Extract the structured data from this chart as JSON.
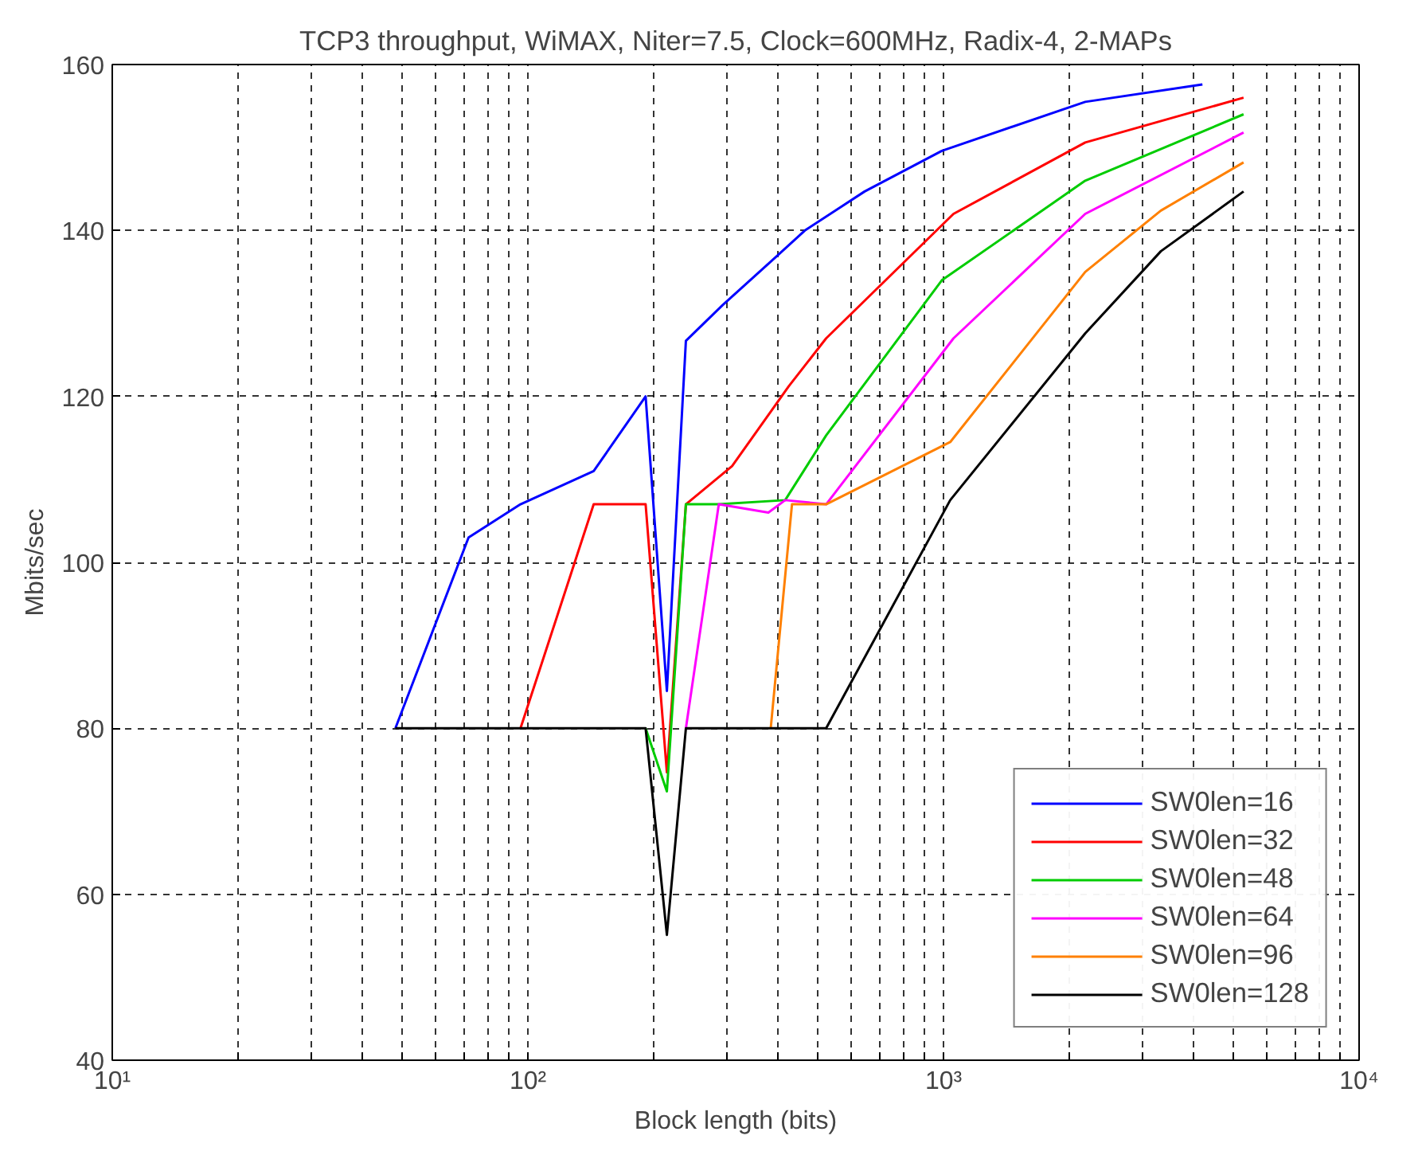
{
  "chart_data": {
    "type": "line",
    "title": "TCP3 throughput, WiMAX, Niter=7.5, Clock=600MHz, Radix-4, 2-MAPs",
    "xlabel": "Block length (bits)",
    "ylabel": "Mbits/sec",
    "log": "x",
    "grid": true,
    "legend": "bottom right",
    "line_style": "solid",
    "marker": "none",
    "xlim": [
      10,
      10000
    ],
    "ylim": [
      40,
      160
    ],
    "xticks": [
      {
        "value": 10,
        "label": "10¹"
      },
      {
        "value": 20,
        "label": null
      },
      {
        "value": 30,
        "label": null
      },
      {
        "value": 40,
        "label": null
      },
      {
        "value": 50,
        "label": null
      },
      {
        "value": 60,
        "label": null
      },
      {
        "value": 70,
        "label": null
      },
      {
        "value": 80,
        "label": null
      },
      {
        "value": 90,
        "label": null
      },
      {
        "value": 100,
        "label": "10²"
      },
      {
        "value": 200,
        "label": null
      },
      {
        "value": 300,
        "label": null
      },
      {
        "value": 400,
        "label": null
      },
      {
        "value": 500,
        "label": null
      },
      {
        "value": 600,
        "label": null
      },
      {
        "value": 700,
        "label": null
      },
      {
        "value": 800,
        "label": null
      },
      {
        "value": 900,
        "label": null
      },
      {
        "value": 1000,
        "label": "10³"
      },
      {
        "value": 2000,
        "label": null
      },
      {
        "value": 3000,
        "label": null
      },
      {
        "value": 4000,
        "label": null
      },
      {
        "value": 5000,
        "label": null
      },
      {
        "value": 6000,
        "label": null
      },
      {
        "value": 7000,
        "label": null
      },
      {
        "value": 8000,
        "label": null
      },
      {
        "value": 9000,
        "label": null
      },
      {
        "value": 10000,
        "label": "10⁴"
      }
    ],
    "yticks": [
      40,
      60,
      80,
      100,
      120,
      140,
      160
    ],
    "series": [
      {
        "name": "SW0len=16",
        "color": "#0000ff",
        "x": [
          48,
          72,
          96,
          144,
          192,
          216,
          240,
          294,
          397,
          464,
          646,
          991,
          2193,
          4198
        ],
        "values": [
          80,
          103,
          107,
          111,
          120,
          84.5,
          126.7,
          131,
          136.9,
          140,
          144.7,
          149.6,
          155.5,
          157.6
        ]
      },
      {
        "name": "SW0len=32",
        "color": "#ff0000",
        "x": [
          96,
          144,
          192,
          216,
          240,
          310,
          424,
          522,
          1057,
          2193,
          5272
        ],
        "values": [
          80,
          107,
          107,
          74.7,
          107,
          111.6,
          121.2,
          127,
          142,
          150.6,
          156
        ]
      },
      {
        "name": "SW0len=48",
        "color": "#00cc00",
        "x": [
          192,
          216,
          240,
          288,
          416,
          522,
          991,
          2193,
          5272
        ],
        "values": [
          80,
          72.4,
          107,
          107,
          107.5,
          115.3,
          134,
          146,
          154
        ]
      },
      {
        "name": "SW0len=64",
        "color": "#ff00ff",
        "x": [
          240,
          288,
          379,
          416,
          522,
          1057,
          2193,
          5272
        ],
        "values": [
          80,
          107,
          106,
          107.5,
          107,
          127,
          142,
          151.8
        ]
      },
      {
        "name": "SW0len=96",
        "color": "#ff8000",
        "x": [
          384,
          432,
          522,
          1038,
          2193,
          3335,
          5272
        ],
        "values": [
          80,
          107,
          107,
          114.5,
          135,
          142.4,
          148.2
        ]
      },
      {
        "name": "SW0len=128",
        "color": "#000000",
        "x": [
          48,
          192,
          216,
          240,
          522,
          1038,
          2193,
          3335,
          5272
        ],
        "values": [
          80,
          80,
          55.1,
          80,
          80,
          107.5,
          127.6,
          137.5,
          144.7
        ]
      }
    ]
  }
}
